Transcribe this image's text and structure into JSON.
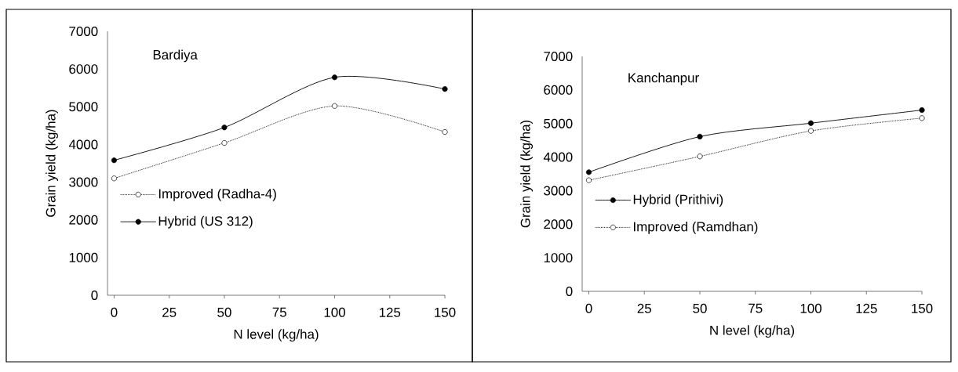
{
  "chart_data": [
    {
      "type": "line",
      "title": "Bardiya",
      "xlabel": "N level (kg/ha)",
      "ylabel": "Grain yield (kg/ha)",
      "x": [
        0,
        50,
        100,
        150
      ],
      "xlim": [
        -3,
        150
      ],
      "ylim": [
        0,
        7000
      ],
      "xticks": [
        0,
        25,
        50,
        75,
        100,
        125,
        150
      ],
      "yticks": [
        0,
        1000,
        2000,
        3000,
        4000,
        5000,
        6000,
        7000
      ],
      "legend": "left",
      "marker": "circle",
      "series": [
        {
          "name": "Improved (Radha-4)",
          "color": "#000000",
          "line_style": "dotted",
          "values": [
            3100,
            4040,
            5020,
            4330
          ]
        },
        {
          "name": "Hybrid (US 312)",
          "color": "#000000",
          "line_style": "solid",
          "values": [
            3580,
            4450,
            5780,
            5470
          ]
        }
      ]
    },
    {
      "type": "line",
      "title": "Kanchanpur",
      "xlabel": "N level (kg/ha)",
      "ylabel": "Grain yield (kg/ha)",
      "x": [
        0,
        50,
        100,
        150
      ],
      "xlim": [
        -3,
        150
      ],
      "ylim": [
        0,
        7000
      ],
      "xticks": [
        0,
        25,
        50,
        75,
        100,
        125,
        150
      ],
      "yticks": [
        0,
        1000,
        2000,
        3000,
        4000,
        5000,
        6000,
        7000
      ],
      "legend": "left",
      "marker": "circle",
      "series": [
        {
          "name": "Hybrid (Prithivi)",
          "color": "#000000",
          "line_style": "solid",
          "values": [
            3550,
            4610,
            5010,
            5400
          ]
        },
        {
          "name": "Improved (Ramdhan)",
          "color": "#000000",
          "line_style": "dotted",
          "values": [
            3310,
            4020,
            4780,
            5160
          ]
        }
      ]
    }
  ]
}
